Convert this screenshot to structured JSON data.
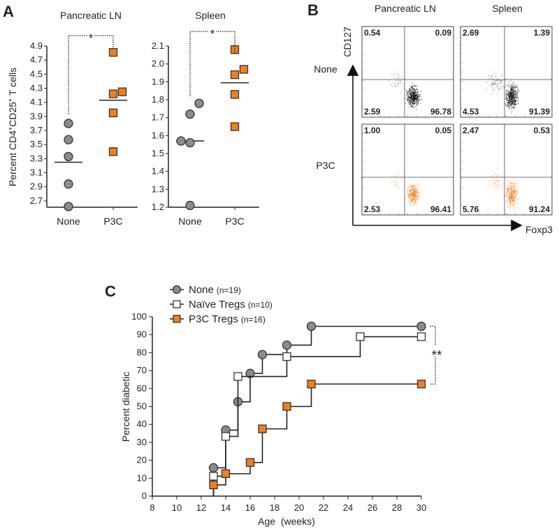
{
  "colors": {
    "none": "#8c8c8c",
    "p3c": "#f07f1f",
    "naive": "#ffffff",
    "axis": "#222222"
  },
  "chart_data": [
    {
      "panel": "A",
      "type": "scatter",
      "title": "Pancreatic LN",
      "ylabel": "Percent CD4+CD25+ T cells",
      "ylabel_parts": {
        "a": "Percent CD4",
        "sup1": "+",
        "b": "CD25",
        "sup2": "+",
        "c": " T cells"
      },
      "categories": [
        "None",
        "P3C"
      ],
      "yticks": [
        "4.9",
        "4.7",
        "4.5",
        "4.3",
        "4.1",
        "3.9",
        "3.7",
        "3.5",
        "3.3",
        "3.1",
        "2.9",
        "2.7"
      ],
      "ylim": [
        2.61,
        4.9
      ],
      "series": [
        {
          "name": "None",
          "marker": "circle",
          "values": [
            3.8,
            3.57,
            3.33,
            2.94,
            2.62
          ],
          "offsets": [
            0,
            0,
            0,
            0,
            0
          ],
          "mean": 3.25
        },
        {
          "name": "P3C",
          "marker": "square",
          "values": [
            4.81,
            4.22,
            4.25,
            3.95,
            3.4
          ],
          "offsets": [
            0,
            0,
            1,
            0,
            0
          ],
          "mean": 4.13
        }
      ],
      "significance": "*"
    },
    {
      "panel": "A",
      "type": "scatter",
      "title": "Spleen",
      "categories": [
        "None",
        "P3C"
      ],
      "yticks": [
        "2.1",
        "2.0",
        "1.9",
        "1.8",
        "1.7",
        "1.6",
        "1.5",
        "1.4",
        "1.3",
        "1.2"
      ],
      "ylim": [
        1.2,
        2.1
      ],
      "series": [
        {
          "name": "None",
          "marker": "circle",
          "values": [
            1.78,
            1.72,
            1.57,
            1.56,
            1.21
          ],
          "offsets": [
            1,
            0,
            -1,
            0,
            0
          ],
          "mean": 1.57
        },
        {
          "name": "P3C",
          "marker": "square",
          "values": [
            2.08,
            1.94,
            1.97,
            1.83,
            1.65
          ],
          "offsets": [
            0,
            0,
            1,
            0,
            0
          ],
          "mean": 1.895
        }
      ],
      "significance": "*"
    },
    {
      "panel": "B",
      "type": "scatter",
      "columns": [
        "Pancreatic LN",
        "Spleen"
      ],
      "rows": [
        "None",
        "P3C"
      ],
      "xlabel": "Foxp3",
      "ylabel": "CD127",
      "quadrants": [
        [
          {
            "ul": "0.54",
            "ur": "0.09",
            "ll": "2.59",
            "lr": "96.78"
          },
          {
            "ul": "2.69",
            "ur": "1.39",
            "ll": "4.53",
            "lr": "91.39"
          }
        ],
        [
          {
            "ul": "1.00",
            "ur": "0.05",
            "ll": "2.53",
            "lr": "96.41"
          },
          {
            "ul": "2.47",
            "ur": "0.53",
            "ll": "5.76",
            "lr": "91.24"
          }
        ]
      ]
    },
    {
      "panel": "C",
      "type": "line",
      "xlabel": "Age  (weeks)",
      "ylabel": "Percent diabetic",
      "xlim": [
        8,
        30
      ],
      "ylim": [
        0,
        100
      ],
      "xticks": [
        "8",
        "10",
        "12",
        "14",
        "16",
        "18",
        "20",
        "22",
        "24",
        "26",
        "28",
        "30"
      ],
      "yticks": [
        "0",
        "10",
        "20",
        "30",
        "40",
        "50",
        "60",
        "70",
        "80",
        "90",
        "100"
      ],
      "series": [
        {
          "name": "None",
          "n": "(n=19)",
          "marker": "circle",
          "x": [
            13,
            14,
            15,
            16,
            17,
            19,
            21,
            30
          ],
          "y": [
            15.8,
            36.8,
            52.6,
            68.4,
            78.9,
            84.2,
            94.7,
            94.7
          ]
        },
        {
          "name": "Naïve Tregs",
          "n": "(n=10)",
          "marker": "open-square",
          "x": [
            13,
            14,
            15,
            19,
            25,
            30
          ],
          "y": [
            11.1,
            33.3,
            66.7,
            77.8,
            88.9,
            88.9
          ]
        },
        {
          "name": "P3C Tregs",
          "n": "(n=16)",
          "marker": "square",
          "x": [
            13,
            14,
            16,
            17,
            19,
            21,
            30
          ],
          "y": [
            6.25,
            12.5,
            18.75,
            37.5,
            50,
            62.5,
            62.5
          ]
        }
      ],
      "legend_position": "top-left",
      "significance": "**"
    }
  ],
  "panel_labels": {
    "a": "A",
    "b": "B",
    "c": "C"
  }
}
